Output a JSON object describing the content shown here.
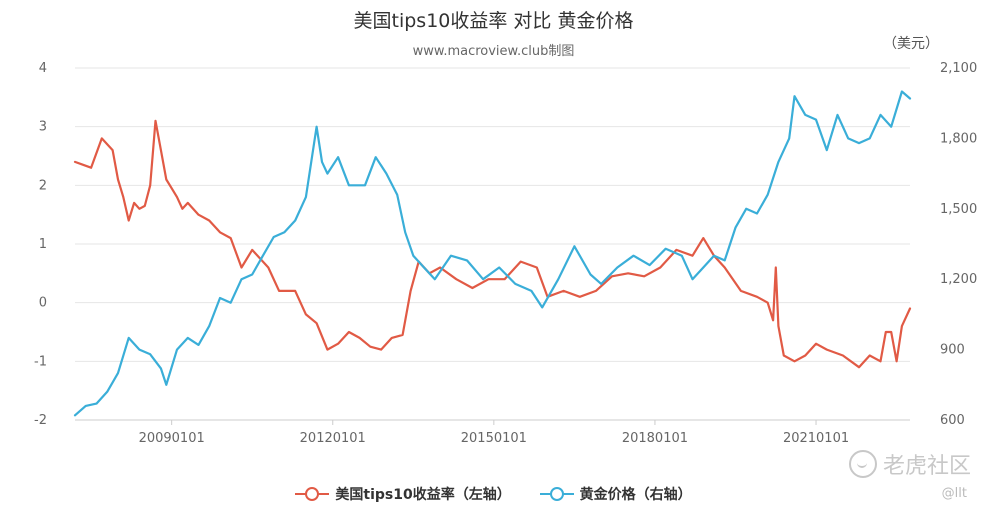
{
  "chart_data": {
    "type": "line",
    "title": "美国tips10收益率 对比 黄金价格",
    "subtitle": "www.macroview.club制图",
    "y2_unit": "（美元）",
    "x_tick_labels": [
      "20090101",
      "20120101",
      "20150101",
      "20180101",
      "20210101"
    ],
    "x_tick_positions": [
      2009.0,
      2012.0,
      2015.0,
      2018.0,
      2021.0
    ],
    "xlim": [
      2007.2,
      2022.75
    ],
    "y_left": {
      "ticks": [
        4,
        3,
        2,
        1,
        0,
        -1,
        -2
      ],
      "ylim": [
        -2,
        4
      ]
    },
    "y_right": {
      "ticks": [
        "2,100",
        "1,800",
        "1,500",
        "1,200",
        "900",
        "600"
      ],
      "tick_values": [
        2100,
        1800,
        1500,
        1200,
        900,
        600
      ],
      "ylim": [
        600,
        2100
      ]
    },
    "grid": true,
    "legend_position": "bottom",
    "series": [
      {
        "name": "美国tips10收益率（左轴）",
        "axis": "left",
        "color": "#e15a45",
        "x": [
          2007.2,
          2007.35,
          2007.5,
          2007.7,
          2007.9,
          2008.0,
          2008.1,
          2008.2,
          2008.3,
          2008.4,
          2008.5,
          2008.6,
          2008.7,
          2008.8,
          2008.9,
          2009.0,
          2009.1,
          2009.2,
          2009.3,
          2009.5,
          2009.7,
          2009.9,
          2010.1,
          2010.3,
          2010.5,
          2010.8,
          2011.0,
          2011.3,
          2011.5,
          2011.7,
          2011.9,
          2012.1,
          2012.3,
          2012.5,
          2012.7,
          2012.9,
          2013.1,
          2013.3,
          2013.45,
          2013.6,
          2013.8,
          2014.0,
          2014.3,
          2014.6,
          2014.9,
          2015.2,
          2015.5,
          2015.8,
          2016.0,
          2016.3,
          2016.6,
          2016.9,
          2017.2,
          2017.5,
          2017.8,
          2018.1,
          2018.4,
          2018.7,
          2018.9,
          2019.1,
          2019.3,
          2019.6,
          2019.9,
          2020.0,
          2020.1,
          2020.2,
          2020.25,
          2020.3,
          2020.4,
          2020.6,
          2020.8,
          2021.0,
          2021.2,
          2021.5,
          2021.8,
          2022.0,
          2022.2,
          2022.3,
          2022.4,
          2022.5,
          2022.6,
          2022.75
        ],
        "y": [
          2.4,
          2.35,
          2.3,
          2.8,
          2.6,
          2.1,
          1.8,
          1.4,
          1.7,
          1.6,
          1.65,
          2.0,
          3.1,
          2.6,
          2.1,
          1.95,
          1.8,
          1.6,
          1.7,
          1.5,
          1.4,
          1.2,
          1.1,
          0.6,
          0.9,
          0.6,
          0.2,
          0.2,
          -0.2,
          -0.35,
          -0.8,
          -0.7,
          -0.5,
          -0.6,
          -0.75,
          -0.8,
          -0.6,
          -0.55,
          0.2,
          0.7,
          0.5,
          0.6,
          0.4,
          0.25,
          0.4,
          0.4,
          0.7,
          0.6,
          0.1,
          0.2,
          0.1,
          0.2,
          0.45,
          0.5,
          0.45,
          0.6,
          0.9,
          0.8,
          1.1,
          0.8,
          0.6,
          0.2,
          0.1,
          0.05,
          0.0,
          -0.3,
          0.6,
          -0.4,
          -0.9,
          -1.0,
          -0.9,
          -0.7,
          -0.8,
          -0.9,
          -1.1,
          -0.9,
          -1.0,
          -0.5,
          -0.5,
          -1.0,
          -0.4,
          -0.1
        ]
      },
      {
        "name": "黄金价格（右轴）",
        "axis": "right",
        "color": "#3aaed8",
        "x": [
          2007.2,
          2007.4,
          2007.6,
          2007.8,
          2008.0,
          2008.2,
          2008.4,
          2008.6,
          2008.8,
          2008.9,
          2009.1,
          2009.3,
          2009.5,
          2009.7,
          2009.9,
          2010.1,
          2010.3,
          2010.5,
          2010.7,
          2010.9,
          2011.1,
          2011.3,
          2011.5,
          2011.7,
          2011.8,
          2011.9,
          2012.1,
          2012.3,
          2012.6,
          2012.8,
          2013.0,
          2013.2,
          2013.35,
          2013.5,
          2013.7,
          2013.9,
          2014.2,
          2014.5,
          2014.8,
          2015.1,
          2015.4,
          2015.7,
          2015.9,
          2016.2,
          2016.5,
          2016.8,
          2017.0,
          2017.3,
          2017.6,
          2017.9,
          2018.2,
          2018.5,
          2018.7,
          2018.9,
          2019.1,
          2019.3,
          2019.5,
          2019.7,
          2019.9,
          2020.1,
          2020.3,
          2020.5,
          2020.6,
          2020.8,
          2021.0,
          2021.2,
          2021.4,
          2021.6,
          2021.8,
          2022.0,
          2022.2,
          2022.4,
          2022.6,
          2022.75
        ],
        "y": [
          620,
          660,
          670,
          720,
          800,
          950,
          900,
          880,
          820,
          750,
          900,
          950,
          920,
          1000,
          1120,
          1100,
          1200,
          1220,
          1300,
          1380,
          1400,
          1450,
          1550,
          1850,
          1700,
          1650,
          1720,
          1600,
          1600,
          1720,
          1650,
          1560,
          1400,
          1300,
          1250,
          1200,
          1300,
          1280,
          1200,
          1250,
          1180,
          1150,
          1080,
          1200,
          1340,
          1220,
          1180,
          1250,
          1300,
          1260,
          1330,
          1300,
          1200,
          1250,
          1300,
          1280,
          1420,
          1500,
          1480,
          1560,
          1700,
          1800,
          1980,
          1900,
          1880,
          1750,
          1900,
          1800,
          1780,
          1800,
          1900,
          1850,
          2000,
          1970
        ]
      }
    ]
  },
  "legend": {
    "left_label": "美国tips10收益率（左轴）",
    "right_label": "黄金价格（右轴）"
  },
  "watermark": {
    "text": "老虎社区",
    "user": "@llt"
  },
  "colors": {
    "tips": "#e15a45",
    "gold": "#3aaed8",
    "grid": "#e6e6e6",
    "axis_text": "#666666"
  }
}
